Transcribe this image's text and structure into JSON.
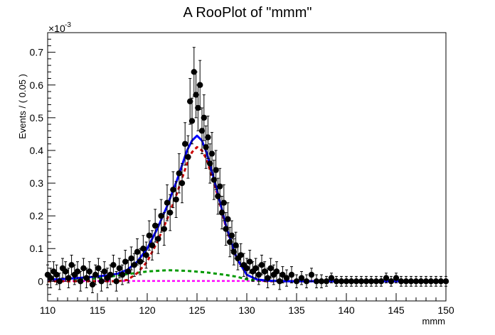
{
  "chart_data": {
    "type": "scatter",
    "title": "A RooPlot of \"mmm\"",
    "xlabel": "mmm",
    "ylabel": "Events / ( 0.05 )",
    "y_multiplier": "×10",
    "y_exponent": "-3",
    "xlim": [
      110,
      150
    ],
    "ylim": [
      -0.06,
      0.76
    ],
    "x_ticks": [
      110,
      115,
      120,
      125,
      130,
      135,
      140,
      145,
      150
    ],
    "y_ticks": [
      0,
      0.1,
      0.2,
      0.3,
      0.4,
      0.5,
      0.6,
      0.7
    ],
    "grid": false,
    "legend": "none",
    "colors": {
      "data": "#000000",
      "total_fit": "#0000ff",
      "signal": "#cc0000",
      "background_green": "#009900",
      "background_magenta": "#ff00ff"
    },
    "series": [
      {
        "kind": "points",
        "points": [
          [
            110.0,
            0.02,
            0.03
          ],
          [
            110.3,
            0.01,
            0.03
          ],
          [
            110.6,
            0.03,
            0.03
          ],
          [
            110.9,
            0.02,
            0.03
          ],
          [
            111.2,
            0.0,
            0.025
          ],
          [
            111.5,
            0.04,
            0.03
          ],
          [
            111.8,
            0.03,
            0.03
          ],
          [
            112.1,
            0.01,
            0.03
          ],
          [
            112.4,
            0.05,
            0.03
          ],
          [
            112.7,
            0.02,
            0.03
          ],
          [
            113.0,
            0.03,
            0.03
          ],
          [
            113.3,
            0.0,
            0.03
          ],
          [
            113.6,
            0.04,
            0.03
          ],
          [
            113.9,
            0.01,
            0.03
          ],
          [
            114.2,
            0.03,
            0.03
          ],
          [
            114.5,
            -0.01,
            0.025
          ],
          [
            114.8,
            0.02,
            0.03
          ],
          [
            115.1,
            0.04,
            0.03
          ],
          [
            115.4,
            0.0,
            0.03
          ],
          [
            115.7,
            0.03,
            0.03
          ],
          [
            116.0,
            0.01,
            0.03
          ],
          [
            116.3,
            0.02,
            0.03
          ],
          [
            116.6,
            0.05,
            0.03
          ],
          [
            116.9,
            0.0,
            0.03
          ],
          [
            117.2,
            0.04,
            0.03
          ],
          [
            117.5,
            0.02,
            0.03
          ],
          [
            117.8,
            0.06,
            0.035
          ],
          [
            118.1,
            0.03,
            0.035
          ],
          [
            118.4,
            0.07,
            0.035
          ],
          [
            118.7,
            0.05,
            0.035
          ],
          [
            119.0,
            0.09,
            0.04
          ],
          [
            119.3,
            0.06,
            0.04
          ],
          [
            119.6,
            0.1,
            0.04
          ],
          [
            119.9,
            0.08,
            0.04
          ],
          [
            120.2,
            0.14,
            0.045
          ],
          [
            120.5,
            0.11,
            0.045
          ],
          [
            120.8,
            0.17,
            0.05
          ],
          [
            121.1,
            0.13,
            0.045
          ],
          [
            121.4,
            0.2,
            0.05
          ],
          [
            121.7,
            0.16,
            0.05
          ],
          [
            122.0,
            0.24,
            0.055
          ],
          [
            122.3,
            0.21,
            0.055
          ],
          [
            122.6,
            0.28,
            0.055
          ],
          [
            122.9,
            0.25,
            0.055
          ],
          [
            123.2,
            0.33,
            0.06
          ],
          [
            123.5,
            0.3,
            0.06
          ],
          [
            123.8,
            0.42,
            0.065
          ],
          [
            124.1,
            0.38,
            0.065
          ],
          [
            124.3,
            0.55,
            0.07
          ],
          [
            124.5,
            0.49,
            0.07
          ],
          [
            124.7,
            0.64,
            0.075
          ],
          [
            124.9,
            0.57,
            0.07
          ],
          [
            125.1,
            0.53,
            0.07
          ],
          [
            125.3,
            0.6,
            0.075
          ],
          [
            125.5,
            0.46,
            0.07
          ],
          [
            125.7,
            0.5,
            0.07
          ],
          [
            125.9,
            0.41,
            0.065
          ],
          [
            126.1,
            0.44,
            0.065
          ],
          [
            126.3,
            0.36,
            0.06
          ],
          [
            126.5,
            0.39,
            0.065
          ],
          [
            126.7,
            0.31,
            0.06
          ],
          [
            126.9,
            0.34,
            0.06
          ],
          [
            127.1,
            0.26,
            0.055
          ],
          [
            127.3,
            0.29,
            0.055
          ],
          [
            127.5,
            0.21,
            0.05
          ],
          [
            127.7,
            0.24,
            0.055
          ],
          [
            127.9,
            0.16,
            0.05
          ],
          [
            128.1,
            0.19,
            0.05
          ],
          [
            128.3,
            0.12,
            0.045
          ],
          [
            128.5,
            0.14,
            0.045
          ],
          [
            128.7,
            0.09,
            0.04
          ],
          [
            128.9,
            0.11,
            0.04
          ],
          [
            129.1,
            0.07,
            0.035
          ],
          [
            129.4,
            0.08,
            0.035
          ],
          [
            129.7,
            0.05,
            0.035
          ],
          [
            130.0,
            0.04,
            0.03
          ],
          [
            130.3,
            0.06,
            0.035
          ],
          [
            130.6,
            0.03,
            0.03
          ],
          [
            130.9,
            0.04,
            0.03
          ],
          [
            131.2,
            0.02,
            0.03
          ],
          [
            131.5,
            0.05,
            0.03
          ],
          [
            131.8,
            0.03,
            0.03
          ],
          [
            132.1,
            0.01,
            0.03
          ],
          [
            132.4,
            0.04,
            0.03
          ],
          [
            132.7,
            0.02,
            0.03
          ],
          [
            133.0,
            0.03,
            0.03
          ],
          [
            133.3,
            0.0,
            0.025
          ],
          [
            133.6,
            0.02,
            0.025
          ],
          [
            134.0,
            0.01,
            0.025
          ],
          [
            134.5,
            0.02,
            0.025
          ],
          [
            135.0,
            0.0,
            0.02
          ],
          [
            135.5,
            0.01,
            0.02
          ],
          [
            136.0,
            0.0,
            0.02
          ],
          [
            136.5,
            0.02,
            0.02
          ],
          [
            137.0,
            0.0,
            0.02
          ],
          [
            137.5,
            0.0,
            0.02
          ],
          [
            138.0,
            0.0,
            0.015
          ],
          [
            138.5,
            0.01,
            0.015
          ],
          [
            139.0,
            0.0,
            0.015
          ],
          [
            139.5,
            0.0,
            0.015
          ],
          [
            140.0,
            0.0,
            0.015
          ],
          [
            140.5,
            0.0,
            0.015
          ],
          [
            141.0,
            0.0,
            0.015
          ],
          [
            141.5,
            0.0,
            0.015
          ],
          [
            142.0,
            0.0,
            0.015
          ],
          [
            142.5,
            0.0,
            0.015
          ],
          [
            143.0,
            0.0,
            0.015
          ],
          [
            143.5,
            0.0,
            0.015
          ],
          [
            144.0,
            0.01,
            0.015
          ],
          [
            144.5,
            0.0,
            0.015
          ],
          [
            145.0,
            0.01,
            0.015
          ],
          [
            145.5,
            0.0,
            0.015
          ],
          [
            146.0,
            0.0,
            0.015
          ],
          [
            146.5,
            0.0,
            0.015
          ],
          [
            147.0,
            0.0,
            0.015
          ],
          [
            147.5,
            0.0,
            0.015
          ],
          [
            148.0,
            0.0,
            0.015
          ],
          [
            148.5,
            0.0,
            0.015
          ],
          [
            149.0,
            0.0,
            0.015
          ],
          [
            149.5,
            0.0,
            0.015
          ],
          [
            150.0,
            0.0,
            0.015
          ]
        ]
      },
      {
        "kind": "curve",
        "component": "total_fit",
        "points": [
          [
            110,
            0.005
          ],
          [
            112,
            0.008
          ],
          [
            114,
            0.012
          ],
          [
            116,
            0.018
          ],
          [
            117,
            0.023
          ],
          [
            118,
            0.035
          ],
          [
            119,
            0.06
          ],
          [
            120,
            0.1
          ],
          [
            121,
            0.16
          ],
          [
            122,
            0.23
          ],
          [
            123,
            0.31
          ],
          [
            124,
            0.4
          ],
          [
            124.5,
            0.43
          ],
          [
            125,
            0.445
          ],
          [
            125.5,
            0.43
          ],
          [
            126,
            0.39
          ],
          [
            127,
            0.28
          ],
          [
            128,
            0.16
          ],
          [
            129,
            0.07
          ],
          [
            130,
            0.02
          ],
          [
            131,
            0.006
          ],
          [
            132,
            0.002
          ],
          [
            134,
            0.0
          ],
          [
            150,
            0.0
          ]
        ]
      },
      {
        "kind": "curve",
        "component": "signal",
        "points": [
          [
            110,
            0.0
          ],
          [
            117,
            0.0
          ],
          [
            118,
            0.004
          ],
          [
            119,
            0.025
          ],
          [
            120,
            0.06
          ],
          [
            121,
            0.12
          ],
          [
            122,
            0.19
          ],
          [
            123,
            0.27
          ],
          [
            124,
            0.36
          ],
          [
            124.5,
            0.395
          ],
          [
            125,
            0.41
          ],
          [
            125.5,
            0.4
          ],
          [
            126,
            0.37
          ],
          [
            127,
            0.27
          ],
          [
            128,
            0.155
          ],
          [
            129,
            0.068
          ],
          [
            130,
            0.02
          ],
          [
            131,
            0.005
          ],
          [
            132,
            0.0
          ],
          [
            150,
            0.0
          ]
        ]
      },
      {
        "kind": "curve",
        "component": "background_green",
        "points": [
          [
            110,
            0.0
          ],
          [
            112,
            0.002
          ],
          [
            114,
            0.006
          ],
          [
            116,
            0.013
          ],
          [
            118,
            0.022
          ],
          [
            120,
            0.03
          ],
          [
            122,
            0.034
          ],
          [
            124,
            0.032
          ],
          [
            126,
            0.027
          ],
          [
            128,
            0.019
          ],
          [
            129,
            0.014
          ],
          [
            130,
            0.006
          ],
          [
            131,
            0.002
          ],
          [
            132,
            0.0
          ],
          [
            150,
            0.0
          ]
        ]
      },
      {
        "kind": "curve",
        "component": "background_magenta",
        "points": [
          [
            110,
            0.001
          ],
          [
            150,
            0.001
          ]
        ]
      }
    ]
  }
}
